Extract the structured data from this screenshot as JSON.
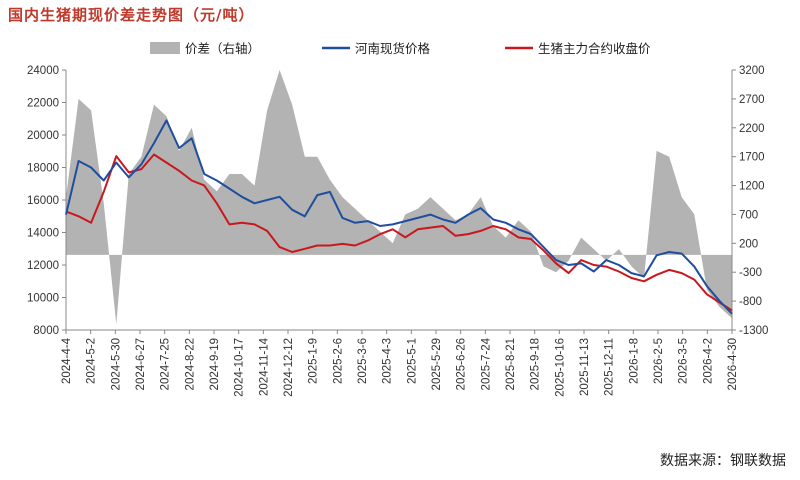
{
  "title": "国内生猪期现价差走势图（元/吨）",
  "source": "数据来源：钢联数据",
  "chart_data": {
    "type": "line",
    "title": "国内生猪期现价差走势图（元/吨）",
    "legend": [
      {
        "name": "价差（右轴）",
        "kind": "area",
        "color": "#b3b3b3"
      },
      {
        "name": "河南现货价格",
        "kind": "line",
        "color": "#1f4e9e"
      },
      {
        "name": "生猪主力合约收盘价",
        "kind": "line",
        "color": "#c8181e"
      }
    ],
    "legend_position": "top",
    "grid": false,
    "left_axis": {
      "min": 8000,
      "max": 24000,
      "ticks": [
        8000,
        10000,
        12000,
        14000,
        16000,
        18000,
        20000,
        22000,
        24000
      ]
    },
    "right_axis": {
      "min": -1300,
      "max": 3200,
      "ticks": [
        -1300,
        -800,
        -300,
        200,
        700,
        1200,
        1700,
        2200,
        2700,
        3200
      ]
    },
    "x_labels": [
      "2024-4-4",
      "2024-5-2",
      "2024-5-30",
      "2024-6-27",
      "2024-7-25",
      "2024-8-22",
      "2024-9-19",
      "2024-10-17",
      "2024-11-14",
      "2024-12-12",
      "2025-1-9",
      "2025-2-6",
      "2025-3-6",
      "2025-4-3",
      "2025-5-1",
      "2025-5-29",
      "2025-6-26",
      "2025-7-24",
      "2025-8-21",
      "2025-9-18",
      "2025-10-16",
      "2025-11-13",
      "2025-12-11",
      "2026-1-8",
      "2026-2-5",
      "2026-3-5",
      "2026-4-2",
      "2026-4-30"
    ],
    "spot_henan": [
      15100,
      18400,
      18000,
      17200,
      18300,
      17400,
      18200,
      19500,
      20900,
      19200,
      19800,
      17600,
      17200,
      16700,
      16200,
      15800,
      16000,
      16200,
      15400,
      15000,
      16300,
      16500,
      14900,
      14600,
      14700,
      14400,
      14500,
      14700,
      14900,
      15100,
      14800,
      14600,
      15100,
      15500,
      14800,
      14600,
      14200,
      13900,
      13100,
      12300,
      12000,
      12100,
      11600,
      12300,
      12000,
      11500,
      11300,
      12600,
      12800,
      12700,
      11900,
      10700,
      9800,
      9000
    ],
    "futures_main": [
      15300,
      15000,
      14600,
      16500,
      18700,
      17700,
      17900,
      18800,
      18300,
      17800,
      17200,
      16900,
      15800,
      14500,
      14600,
      14500,
      14100,
      13100,
      12800,
      13000,
      13200,
      13200,
      13300,
      13200,
      13500,
      13900,
      14200,
      13700,
      14200,
      14300,
      14400,
      13800,
      13900,
      14100,
      14400,
      14200,
      13700,
      13600,
      12900,
      12100,
      11500,
      12300,
      12000,
      11900,
      11600,
      11200,
      11000,
      11400,
      11700,
      11500,
      11100,
      10200,
      9700,
      9200
    ],
    "spread_right": [
      1000,
      2700,
      2500,
      900,
      -1200,
      1400,
      1700,
      2600,
      2400,
      1800,
      2200,
      1300,
      1100,
      1400,
      1400,
      1200,
      2500,
      3200,
      2600,
      1700,
      1700,
      1300,
      1000,
      800,
      600,
      400,
      200,
      700,
      800,
      1000,
      800,
      600,
      700,
      1000,
      500,
      300,
      600,
      400,
      -200,
      -300,
      -100,
      300,
      100,
      -100,
      100,
      -200,
      -400,
      1800,
      1700,
      1000,
      700,
      -600,
      -900,
      -1100
    ]
  }
}
